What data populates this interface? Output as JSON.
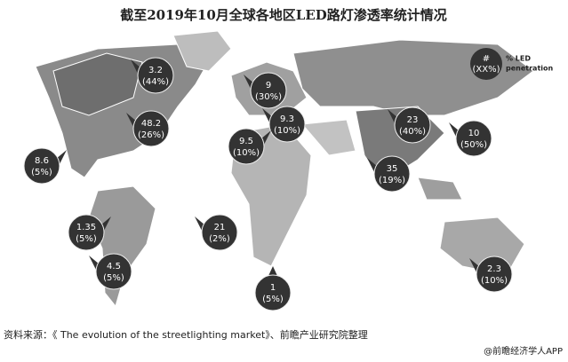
{
  "title": "截至2019年10月全球各地区LED路灯渗透率统计情况",
  "legend": {
    "symbol": "#",
    "percent": "(XX%)",
    "label_line1": "% LED",
    "label_line2": "penetration"
  },
  "bubbles": [
    {
      "value": "3.2",
      "percent": "(44%)"
    },
    {
      "value": "48.2",
      "percent": "(26%)"
    },
    {
      "value": "8.6",
      "percent": "(5%)"
    },
    {
      "value": "9",
      "percent": "(30%)"
    },
    {
      "value": "9.3",
      "percent": "(10%)"
    },
    {
      "value": "9.5",
      "percent": "(10%)"
    },
    {
      "value": "23",
      "percent": "(40%)"
    },
    {
      "value": "10",
      "percent": "(50%)"
    },
    {
      "value": "35",
      "percent": "(19%)"
    },
    {
      "value": "1.35",
      "percent": "(5%)"
    },
    {
      "value": "21",
      "percent": "(2%)"
    },
    {
      "value": "4.5",
      "percent": "(5%)"
    },
    {
      "value": "1",
      "percent": "(5%)"
    },
    {
      "value": "2.3",
      "percent": "(10%)"
    }
  ],
  "source": "资料来源：《 The evolution of the streetlighting market》、前瞻产业研究院整理",
  "footer": "@前瞻经济学人APP"
}
